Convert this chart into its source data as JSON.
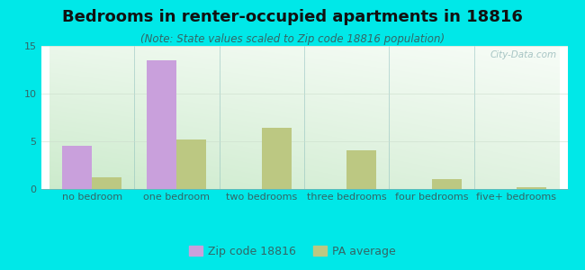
{
  "title": "Bedrooms in renter-occupied apartments in 18816",
  "subtitle": "(Note: State values scaled to Zip code 18816 population)",
  "categories": [
    "no bedroom",
    "one bedroom",
    "two bedrooms",
    "three bedrooms",
    "four bedrooms",
    "five+ bedrooms"
  ],
  "zip_values": [
    4.5,
    13.5,
    0,
    0,
    0,
    0
  ],
  "pa_values": [
    1.2,
    5.2,
    6.4,
    4.1,
    1.0,
    0.2
  ],
  "zip_color": "#c9a0dc",
  "pa_color": "#bcc882",
  "background_outer": "#00e8e8",
  "ylim": [
    0,
    15
  ],
  "yticks": [
    0,
    5,
    10,
    15
  ],
  "bar_width": 0.35,
  "legend_zip_label": "Zip code 18816",
  "legend_pa_label": "PA average",
  "title_fontsize": 13,
  "subtitle_fontsize": 8.5,
  "tick_fontsize": 8,
  "watermark": "City-Data.com"
}
